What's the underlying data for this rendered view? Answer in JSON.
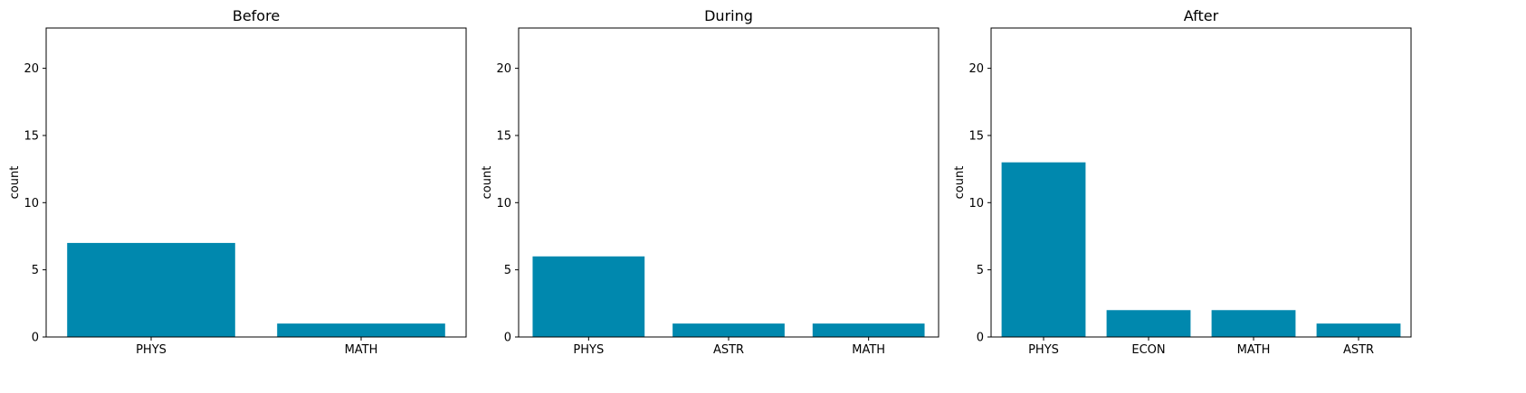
{
  "chart_data": [
    {
      "type": "bar",
      "title": "Before",
      "ylabel": "count",
      "xlabel": "",
      "categories": [
        "PHYS",
        "MATH"
      ],
      "values": [
        7,
        1
      ],
      "ylim": [
        0,
        23
      ],
      "yticks": [
        0,
        5,
        10,
        15,
        20
      ],
      "color": "#0088ae",
      "grid": false
    },
    {
      "type": "bar",
      "title": "During",
      "ylabel": "count",
      "xlabel": "",
      "categories": [
        "PHYS",
        "ASTR",
        "MATH"
      ],
      "values": [
        6,
        1,
        1
      ],
      "ylim": [
        0,
        23
      ],
      "yticks": [
        0,
        5,
        10,
        15,
        20
      ],
      "color": "#0088ae",
      "grid": false
    },
    {
      "type": "bar",
      "title": "After",
      "ylabel": "count",
      "xlabel": "",
      "categories": [
        "PHYS",
        "ECON",
        "MATH",
        "ASTR"
      ],
      "values": [
        13,
        2,
        2,
        1
      ],
      "ylim": [
        0,
        23
      ],
      "yticks": [
        0,
        5,
        10,
        15,
        20
      ],
      "color": "#0088ae",
      "grid": false
    }
  ]
}
